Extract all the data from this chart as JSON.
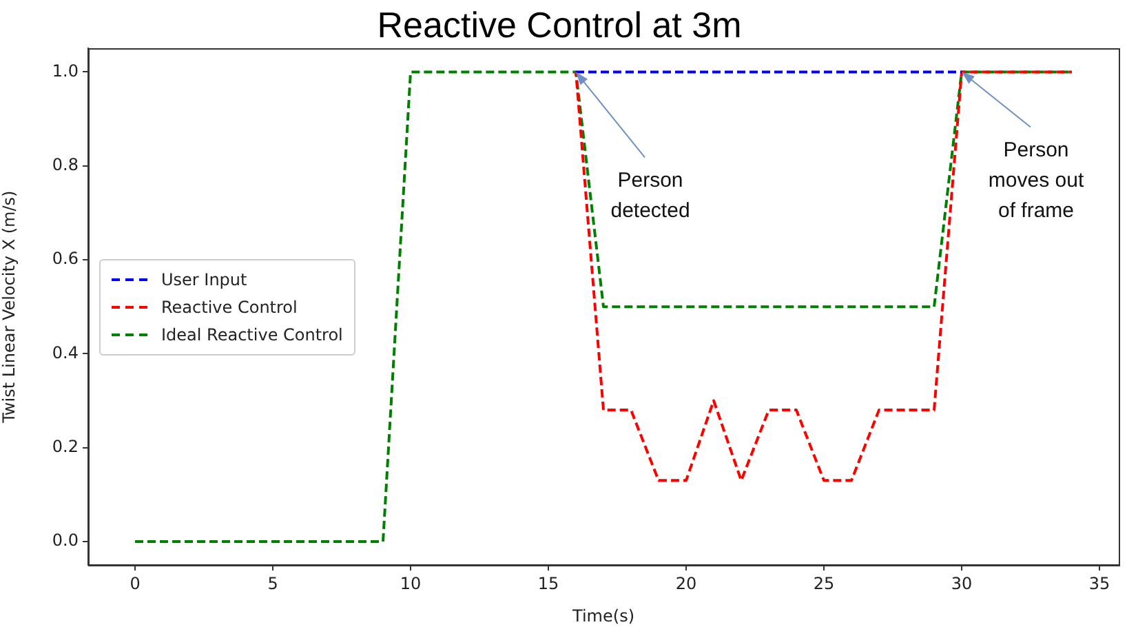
{
  "chart_data": {
    "type": "line",
    "title": "Reactive Control at 3m",
    "xlabel": "Time(s)",
    "ylabel": "Twist Linear Velocity X (m/s)",
    "x": [
      0,
      1,
      2,
      3,
      4,
      5,
      6,
      7,
      8,
      9,
      10,
      11,
      12,
      13,
      14,
      15,
      16,
      17,
      18,
      19,
      20,
      21,
      22,
      23,
      24,
      25,
      26,
      27,
      28,
      29,
      30,
      31,
      32,
      33,
      34
    ],
    "series": [
      {
        "name": "User Input",
        "color": "#0000ff",
        "values": [
          null,
          null,
          null,
          null,
          null,
          null,
          null,
          null,
          null,
          null,
          null,
          null,
          null,
          null,
          null,
          null,
          1,
          1,
          1,
          1,
          1,
          1,
          1,
          1,
          1,
          1,
          1,
          1,
          1,
          1,
          1,
          null,
          null,
          null,
          null
        ]
      },
      {
        "name": "Reactive Control",
        "color": "#ff0000",
        "values": [
          null,
          null,
          null,
          null,
          null,
          null,
          null,
          null,
          null,
          null,
          null,
          null,
          null,
          null,
          null,
          null,
          1,
          0.28,
          0.28,
          0.13,
          0.13,
          0.3,
          0.13,
          0.28,
          0.28,
          0.13,
          0.13,
          0.28,
          0.28,
          0.28,
          1,
          1,
          1,
          1,
          1
        ]
      },
      {
        "name": "Ideal Reactive Control",
        "color": "#008000",
        "values": [
          0,
          0,
          0,
          0,
          0,
          0,
          0,
          0,
          0,
          0,
          1,
          1,
          1,
          1,
          1,
          1,
          1,
          0.5,
          0.5,
          0.5,
          0.5,
          0.5,
          0.5,
          0.5,
          0.5,
          0.5,
          0.5,
          0.5,
          0.5,
          0.5,
          1,
          1,
          1,
          1,
          1
        ]
      }
    ],
    "xlim": [
      -1.7,
      35.7
    ],
    "ylim": [
      -0.05,
      1.05
    ],
    "xticks": [
      0,
      5,
      10,
      15,
      20,
      25,
      30,
      35
    ],
    "yticks": [
      {
        "value": 0,
        "label": "0.0"
      },
      0.2,
      0.4,
      0.6,
      0.8,
      {
        "value": 1,
        "label": "1.0"
      }
    ],
    "line_style": "dashed",
    "legend": "left",
    "annotations": [
      {
        "text": "Person detected",
        "x": 16,
        "y": 1
      },
      {
        "text": "Person moves out of frame",
        "x": 30,
        "y": 1
      }
    ]
  }
}
